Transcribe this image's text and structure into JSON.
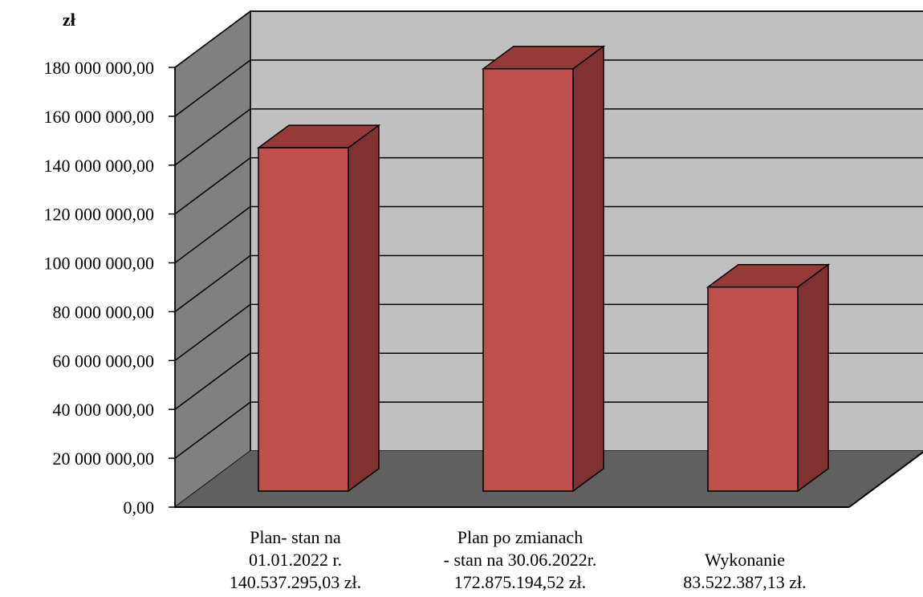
{
  "chart_data": {
    "type": "bar",
    "style": "3d-column",
    "unit_label": "zł",
    "categories": [
      [
        "Plan- stan na",
        "01.01.2022 r.",
        "140.537.295,03 zł."
      ],
      [
        "Plan po zmianach",
        "- stan na 30.06.2022r.",
        "172.875.194,52 zł."
      ],
      [
        "Wykonanie",
        "83.522.387,13 zł."
      ]
    ],
    "values": [
      140537295.03,
      172875194.52,
      83522387.13
    ],
    "ylim": [
      0,
      180000000
    ],
    "ytick_labels": [
      "0,00",
      "20 000 000,00",
      "40 000 000,00",
      "60 000 000,00",
      "80 000 000,00",
      "100 000 000,00",
      "120 000 000,00",
      "140 000 000,00",
      "160 000 000,00",
      "180 000 000,00"
    ],
    "grid": true,
    "colors": {
      "bar_front": "#c0504d",
      "bar_side": "#7f3230",
      "bar_top": "#943b39",
      "back_wall": "#c0c0c0",
      "side_wall": "#808080",
      "floor": "#606060"
    }
  }
}
